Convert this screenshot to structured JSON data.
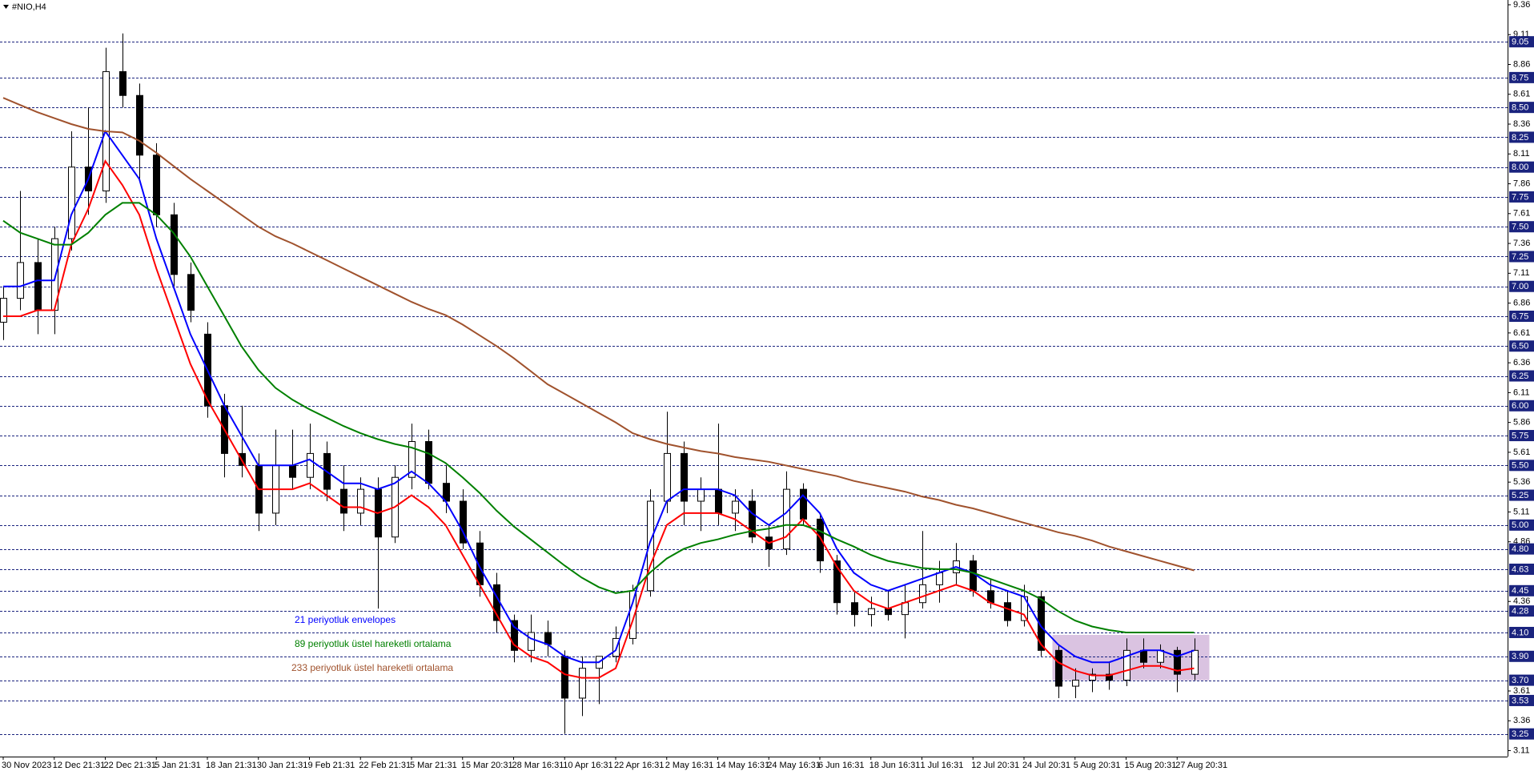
{
  "chart_data": {
    "type": "candlestick",
    "title": "#NIO,H4",
    "categories": [
      "30 Nov 2023",
      null,
      null,
      "12 Dec 21:31",
      null,
      null,
      "22 Dec 21:31",
      null,
      null,
      "5 Jan 21:31",
      null,
      null,
      "18 Jan 21:31",
      null,
      null,
      "30 Jan 21:31",
      null,
      null,
      "9 Feb 21:31",
      null,
      null,
      "22 Feb 21:31",
      null,
      null,
      "5 Mar 21:31",
      null,
      null,
      "15 Mar 20:31",
      null,
      null,
      "28 Mar 16:31",
      null,
      null,
      "10 Apr 16:31",
      null,
      null,
      "22 Apr 16:31",
      null,
      null,
      "2 May 16:31",
      null,
      null,
      "14 May 16:31",
      null,
      null,
      "24 May 16:31",
      null,
      null,
      "6 Jun 16:31",
      null,
      null,
      "18 Jun 16:31",
      null,
      null,
      "1 Jul 16:31",
      null,
      null,
      "12 Jul 20:31",
      null,
      null,
      "24 Jul 20:31",
      null,
      null,
      "5 Aug 20:31",
      null,
      null,
      "15 Aug 20:31",
      null,
      null,
      "27 Aug 20:31",
      null
    ],
    "open": [
      6.7,
      6.9,
      7.2,
      6.8,
      7.4,
      8.0,
      7.8,
      8.8,
      8.6,
      8.1,
      7.6,
      7.1,
      6.6,
      6.0,
      5.6,
      5.5,
      5.1,
      5.5,
      5.4,
      5.6,
      5.3,
      5.1,
      5.3,
      4.9,
      5.4,
      5.7,
      5.35,
      5.2,
      4.85,
      4.5,
      4.2,
      3.95,
      4.1,
      3.9,
      3.55,
      3.8,
      3.9,
      4.05,
      4.45,
      5.2,
      5.6,
      5.2,
      5.3,
      5.1,
      5.2,
      4.9,
      4.8,
      5.3,
      5.05,
      4.7,
      4.35,
      4.25,
      4.3,
      4.25,
      4.35,
      4.5,
      4.6,
      4.7,
      4.45,
      4.35,
      4.2,
      4.4,
      3.95,
      3.65,
      3.7,
      3.75,
      3.7,
      3.95,
      3.85,
      3.95,
      3.75
    ],
    "high": [
      7.0,
      7.8,
      7.4,
      7.5,
      8.3,
      8.5,
      9.0,
      9.12,
      8.7,
      8.2,
      7.7,
      7.2,
      6.7,
      6.1,
      6.0,
      5.6,
      5.8,
      5.8,
      5.85,
      5.7,
      5.5,
      5.4,
      5.4,
      5.5,
      5.85,
      5.8,
      5.5,
      5.3,
      4.95,
      4.6,
      4.25,
      4.25,
      4.2,
      3.95,
      3.9,
      3.9,
      4.15,
      4.5,
      5.3,
      5.95,
      5.7,
      5.4,
      5.85,
      5.3,
      5.3,
      5.0,
      5.45,
      5.35,
      5.1,
      4.75,
      4.45,
      4.4,
      4.45,
      4.5,
      4.95,
      4.7,
      4.85,
      4.75,
      4.55,
      4.45,
      4.5,
      4.45,
      4.0,
      3.8,
      3.8,
      3.85,
      4.05,
      4.05,
      4.0,
      3.98,
      4.05
    ],
    "low": [
      6.55,
      6.8,
      6.6,
      6.6,
      7.3,
      7.6,
      7.7,
      8.5,
      7.9,
      7.5,
      7.0,
      6.7,
      5.9,
      5.4,
      5.4,
      4.95,
      5.0,
      5.3,
      5.3,
      5.2,
      4.95,
      5.0,
      4.3,
      4.85,
      5.3,
      5.3,
      5.1,
      4.8,
      4.4,
      4.1,
      3.85,
      3.85,
      3.9,
      3.25,
      3.4,
      3.5,
      3.85,
      4.0,
      4.4,
      5.1,
      5.0,
      4.95,
      5.0,
      4.95,
      4.85,
      4.65,
      4.75,
      5.0,
      4.6,
      4.25,
      4.15,
      4.15,
      4.2,
      4.05,
      4.3,
      4.35,
      4.5,
      4.4,
      4.3,
      4.15,
      4.15,
      3.9,
      3.55,
      3.55,
      3.6,
      3.62,
      3.65,
      3.8,
      3.8,
      3.6,
      3.7
    ],
    "close": [
      6.9,
      7.2,
      6.8,
      7.4,
      8.0,
      7.8,
      8.8,
      8.6,
      8.1,
      7.6,
      7.1,
      6.8,
      6.0,
      5.6,
      5.5,
      5.1,
      5.5,
      5.4,
      5.6,
      5.3,
      5.1,
      5.3,
      4.9,
      5.4,
      5.7,
      5.35,
      5.2,
      4.85,
      4.5,
      4.2,
      3.95,
      4.1,
      4.0,
      3.55,
      3.8,
      3.9,
      4.05,
      4.45,
      5.2,
      5.6,
      5.2,
      5.3,
      5.1,
      5.2,
      4.9,
      4.8,
      5.3,
      5.05,
      4.7,
      4.35,
      4.25,
      4.3,
      4.25,
      4.35,
      4.5,
      4.6,
      4.7,
      4.45,
      4.35,
      4.2,
      4.4,
      3.95,
      3.65,
      3.7,
      3.75,
      3.7,
      3.95,
      3.85,
      3.95,
      3.75,
      3.95
    ],
    "series": [
      {
        "name": "21 periyotluk envelopes",
        "color": "#0000ff",
        "lower_color": "#ff0000",
        "values": [
          7.0,
          7.0,
          7.05,
          7.05,
          7.6,
          7.9,
          8.3,
          8.1,
          7.9,
          7.4,
          7.0,
          6.6,
          6.3,
          6.0,
          5.75,
          5.5,
          5.5,
          5.5,
          5.55,
          5.45,
          5.35,
          5.35,
          5.3,
          5.35,
          5.45,
          5.35,
          5.2,
          4.95,
          4.65,
          4.4,
          4.15,
          4.05,
          4.0,
          3.9,
          3.85,
          3.85,
          3.95,
          4.35,
          4.85,
          5.2,
          5.3,
          5.3,
          5.3,
          5.25,
          5.1,
          5.0,
          5.1,
          5.25,
          5.1,
          4.8,
          4.6,
          4.5,
          4.45,
          4.5,
          4.55,
          4.6,
          4.65,
          4.6,
          4.5,
          4.45,
          4.4,
          4.15,
          4.0,
          3.9,
          3.85,
          3.85,
          3.9,
          3.95,
          3.95,
          3.9,
          3.95
        ],
        "lower": [
          6.75,
          6.75,
          6.8,
          6.8,
          7.35,
          7.65,
          8.05,
          7.85,
          7.6,
          7.15,
          6.75,
          6.35,
          6.05,
          5.8,
          5.55,
          5.3,
          5.3,
          5.3,
          5.35,
          5.25,
          5.15,
          5.15,
          5.1,
          5.15,
          5.25,
          5.15,
          5.0,
          4.75,
          4.5,
          4.25,
          4.0,
          3.9,
          3.85,
          3.75,
          3.72,
          3.72,
          3.8,
          4.2,
          4.65,
          5.0,
          5.1,
          5.1,
          5.1,
          5.05,
          4.95,
          4.85,
          4.9,
          5.05,
          4.9,
          4.65,
          4.45,
          4.35,
          4.3,
          4.35,
          4.4,
          4.45,
          4.5,
          4.45,
          4.35,
          4.3,
          4.25,
          4.0,
          3.85,
          3.78,
          3.74,
          3.74,
          3.78,
          3.82,
          3.82,
          3.78,
          3.8
        ]
      },
      {
        "name": "89 periyotluk üstel hareketli ortalama",
        "color": "#008000",
        "values": [
          7.55,
          7.45,
          7.4,
          7.35,
          7.35,
          7.45,
          7.6,
          7.7,
          7.7,
          7.6,
          7.45,
          7.25,
          7.0,
          6.75,
          6.5,
          6.3,
          6.15,
          6.05,
          5.97,
          5.9,
          5.83,
          5.77,
          5.72,
          5.68,
          5.65,
          5.6,
          5.52,
          5.4,
          5.27,
          5.12,
          4.99,
          4.88,
          4.77,
          4.66,
          4.56,
          4.48,
          4.43,
          4.45,
          4.6,
          4.72,
          4.8,
          4.85,
          4.88,
          4.92,
          4.95,
          4.97,
          5.0,
          5.0,
          4.95,
          4.88,
          4.82,
          4.75,
          4.7,
          4.67,
          4.64,
          4.63,
          4.63,
          4.6,
          4.55,
          4.5,
          4.45,
          4.38,
          4.28,
          4.2,
          4.15,
          4.12,
          4.1,
          4.1,
          4.1,
          4.1,
          4.1
        ]
      },
      {
        "name": "233 periyotluk üstel hareketli ortalama",
        "color": "#a0522d",
        "values": [
          8.58,
          8.52,
          8.46,
          8.41,
          8.36,
          8.32,
          8.3,
          8.29,
          8.22,
          8.12,
          8.01,
          7.9,
          7.8,
          7.7,
          7.6,
          7.5,
          7.42,
          7.36,
          7.29,
          7.22,
          7.15,
          7.08,
          7.01,
          6.94,
          6.87,
          6.81,
          6.76,
          6.68,
          6.59,
          6.5,
          6.4,
          6.29,
          6.18,
          6.1,
          6.02,
          5.94,
          5.86,
          5.77,
          5.72,
          5.68,
          5.65,
          5.62,
          5.6,
          5.57,
          5.55,
          5.53,
          5.5,
          5.47,
          5.44,
          5.41,
          5.37,
          5.34,
          5.31,
          5.28,
          5.24,
          5.21,
          5.17,
          5.14,
          5.1,
          5.06,
          5.02,
          4.98,
          4.94,
          4.91,
          4.87,
          4.82,
          4.78,
          4.74,
          4.7,
          4.66,
          4.62
        ]
      }
    ],
    "ylim": [
      3.06,
      9.4
    ],
    "yticks": [
      9.36,
      9.11,
      8.86,
      8.61,
      8.36,
      8.11,
      7.86,
      7.61,
      7.36,
      7.11,
      6.86,
      6.61,
      6.36,
      6.11,
      5.86,
      5.61,
      5.36,
      5.11,
      4.86,
      4.36,
      3.61,
      3.36,
      3.11
    ],
    "levels": [
      9.05,
      8.75,
      {
        "value": 8.5,
        "label": "8.50"
      },
      8.25,
      {
        "value": 8,
        "label": "8.00"
      },
      7.75,
      {
        "value": 7.5,
        "label": "7.50"
      },
      7.25,
      {
        "value": 7,
        "label": "7.00"
      },
      6.75,
      {
        "value": 6.5,
        "label": "6.50"
      },
      6.25,
      {
        "value": 6,
        "label": "6.00"
      },
      5.75,
      {
        "value": 5.5,
        "label": "5.50"
      },
      5.25,
      {
        "value": 5,
        "label": "5.00"
      },
      {
        "value": 4.8,
        "label": "4.80"
      },
      4.63,
      4.45,
      4.28,
      {
        "value": 4.1,
        "label": "4.10"
      },
      {
        "value": 3.9,
        "label": "3.90"
      },
      {
        "value": 3.7,
        "label": "3.70"
      },
      3.53,
      3.25
    ],
    "level_color": "#1a237e",
    "zone": {
      "top": 4.08,
      "bottom": 3.7,
      "color": "#d4b8dc"
    }
  }
}
